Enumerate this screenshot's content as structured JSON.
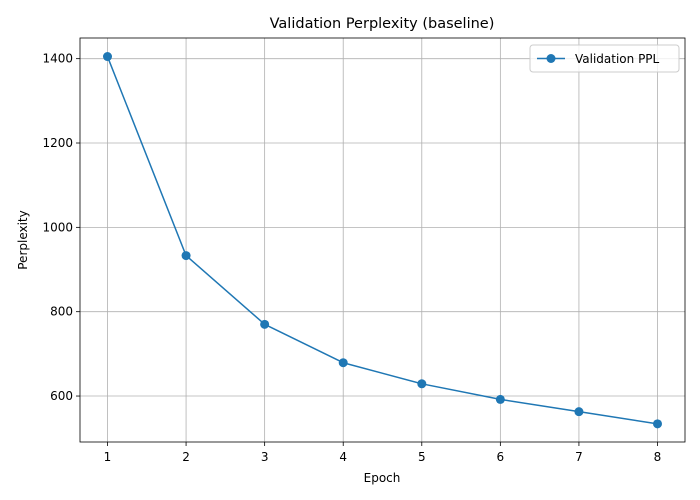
{
  "chart_data": {
    "type": "line",
    "title": "Validation Perplexity (baseline)",
    "xlabel": "Epoch",
    "ylabel": "Perplexity",
    "x": [
      1,
      2,
      3,
      4,
      5,
      6,
      7,
      8
    ],
    "series": [
      {
        "name": "Validation PPL",
        "values": [
          1405,
          933,
          770,
          679,
          629,
          592,
          563,
          534
        ],
        "color": "#1f77b4",
        "marker": "circle"
      }
    ],
    "xticks": [
      1,
      2,
      3,
      4,
      5,
      6,
      7,
      8
    ],
    "yticks": [
      600,
      800,
      1000,
      1200,
      1400
    ],
    "xlim": [
      0.65,
      8.35
    ],
    "ylim": [
      491,
      1449
    ],
    "grid": true,
    "legend_position": "top-right"
  }
}
